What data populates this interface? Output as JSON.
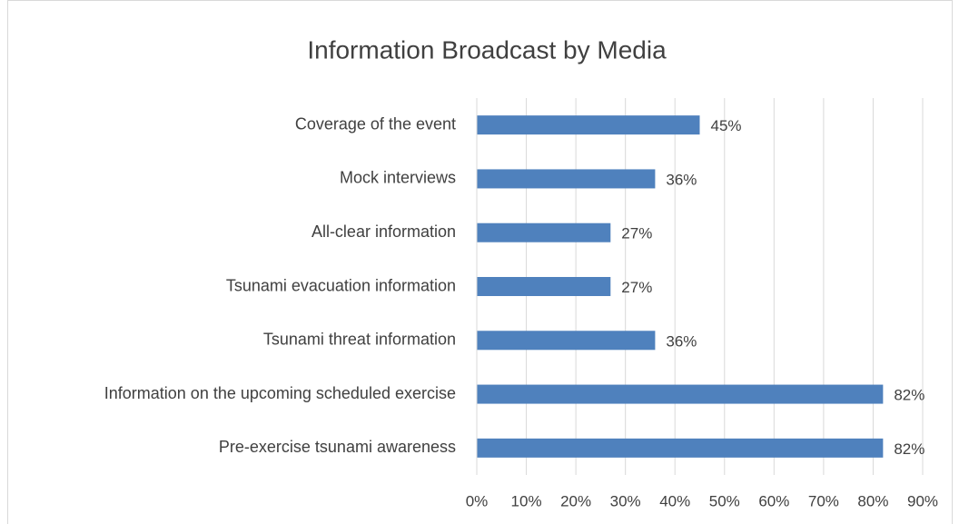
{
  "chart_data": {
    "type": "bar",
    "orientation": "horizontal",
    "title": "Information Broadcast by Media",
    "categories": [
      "Coverage of the event",
      "Mock interviews",
      "All-clear information",
      "Tsunami evacuation information",
      "Tsunami threat information",
      "Information on the upcoming scheduled exercise",
      "Pre-exercise tsunami awareness"
    ],
    "values": [
      45,
      36,
      27,
      27,
      36,
      82,
      82
    ],
    "value_labels": [
      "45%",
      "36%",
      "27%",
      "27%",
      "36%",
      "82%",
      "82%"
    ],
    "color": "#4f81bd",
    "xlim": [
      0,
      90
    ],
    "xticks": [
      {
        "value": 0,
        "label": "0%"
      },
      {
        "value": 10,
        "label": "10%"
      },
      {
        "value": 20,
        "label": "20%"
      },
      {
        "value": 30,
        "label": "30%"
      },
      {
        "value": 40,
        "label": "40%"
      },
      {
        "value": 50,
        "label": "50%"
      },
      {
        "value": 60,
        "label": "60%"
      },
      {
        "value": 70,
        "label": "70%"
      },
      {
        "value": 80,
        "label": "80%"
      },
      {
        "value": 90,
        "label": "90%"
      }
    ],
    "grid": true
  }
}
